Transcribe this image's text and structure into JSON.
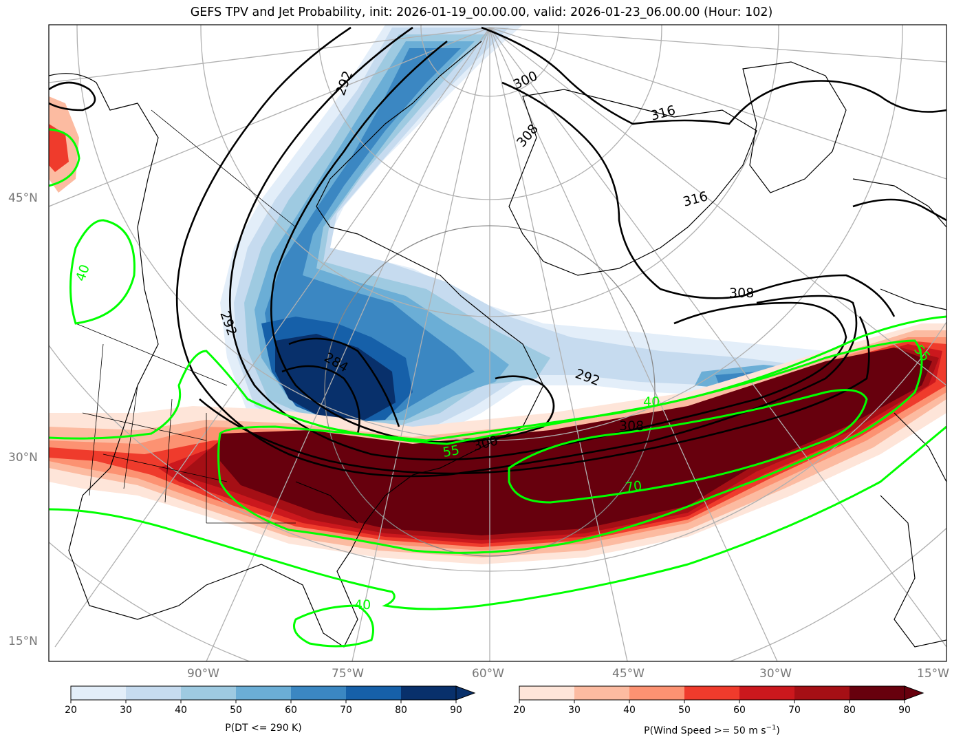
{
  "title": "GEFS TPV and Jet Probability, init: 2026-01-19_00.00.00, valid: 2026-01-23_06.00.00 (Hour: 102)",
  "lat_labels": [
    "45°N",
    "30°N",
    "15°N"
  ],
  "lon_labels": [
    "90°W",
    "75°W",
    "60°W",
    "45°W",
    "30°W",
    "15°W"
  ],
  "colorbar_tpv": {
    "label": "P(DT <= 290 K)",
    "ticks": [
      "20",
      "30",
      "40",
      "50",
      "60",
      "70",
      "80",
      "90"
    ],
    "colors": [
      "#e3eef9",
      "#c6dbef",
      "#9ecae1",
      "#6baed6",
      "#3b87c2",
      "#1660a9",
      "#08306b"
    ]
  },
  "colorbar_jet": {
    "label_prefix": "P(Wind Speed >= 50 m s",
    "label_sup": "−1",
    "label_suffix": ")",
    "ticks": [
      "20",
      "30",
      "40",
      "50",
      "60",
      "70",
      "80",
      "90"
    ],
    "colors": [
      "#fee5d9",
      "#fcbba1",
      "#fc9272",
      "#ef3b2c",
      "#cb181d",
      "#a50f15",
      "#67000d"
    ]
  },
  "theta_contour_labels": [
    "284",
    "292",
    "300",
    "308",
    "316"
  ],
  "jet_contour_labels": [
    "40",
    "55",
    "70"
  ],
  "colors": {
    "jet_contour": "#00ff00",
    "theta_contour": "#000000",
    "graticule": "#b0b0b0"
  }
}
